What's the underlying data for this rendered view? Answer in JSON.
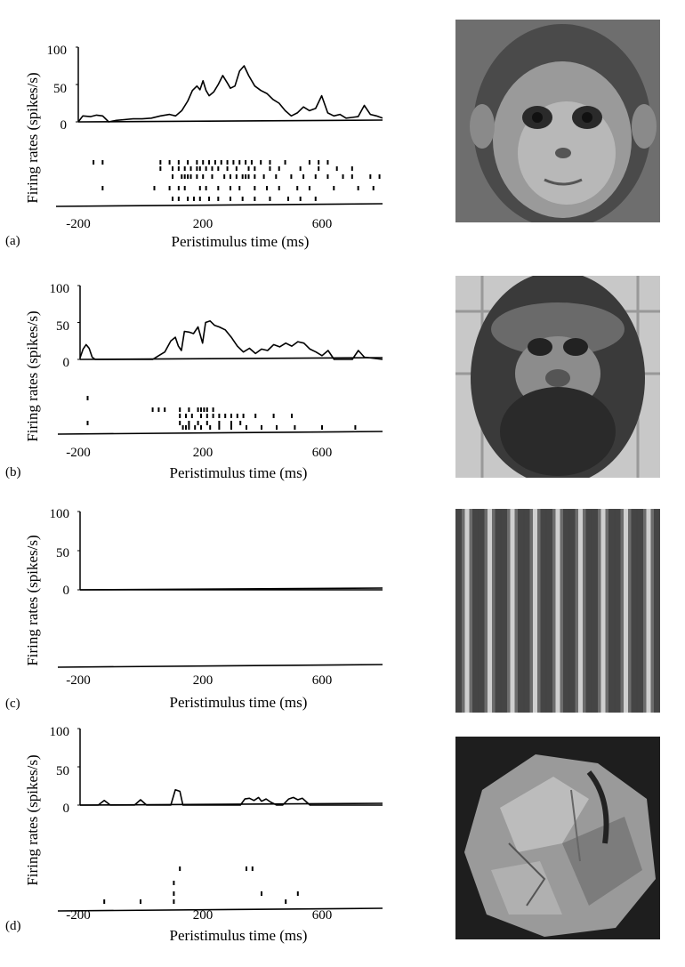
{
  "chart_data": [
    {
      "type": "line",
      "panel": "(a)",
      "ylabel": "Firing rates (spikes/s)",
      "xlabel": "Peristimulus time (ms)",
      "xlim": [
        -200,
        800
      ],
      "ylim": [
        0,
        100
      ],
      "yticks": [
        "100",
        "50",
        "0"
      ],
      "xticks": [
        "-200",
        "200",
        "600"
      ],
      "xtick_values": [
        -200,
        200,
        600
      ],
      "stimulus": "monkey-face-frontal",
      "series": [
        {
          "x": [
            -200,
            -185,
            -160,
            -140,
            -120,
            -100,
            -75,
            -50,
            -20,
            10,
            40,
            70,
            100,
            120,
            140,
            160,
            175,
            190,
            200,
            210,
            220,
            230,
            245,
            260,
            275,
            290,
            300,
            315,
            330,
            345,
            360,
            380,
            400,
            420,
            440,
            460,
            480,
            500,
            520,
            540,
            560,
            580,
            600,
            620,
            640,
            660,
            680,
            700,
            720,
            740,
            760,
            780,
            800
          ],
          "y": [
            0,
            8,
            7,
            9,
            8,
            0,
            2,
            3,
            4,
            4,
            5,
            8,
            10,
            8,
            15,
            28,
            42,
            48,
            43,
            55,
            42,
            35,
            40,
            50,
            62,
            52,
            45,
            48,
            68,
            75,
            62,
            48,
            42,
            38,
            30,
            25,
            15,
            8,
            12,
            20,
            15,
            18,
            35,
            12,
            8,
            10,
            5,
            6,
            7,
            22,
            10,
            8,
            5
          ]
        }
      ],
      "raster": [
        [
          -150,
          -120,
          70,
          100,
          130,
          160,
          190,
          210,
          230,
          250,
          270,
          290,
          310,
          330,
          350,
          370,
          400,
          430,
          480,
          560,
          590,
          620
        ],
        [
          70,
          110,
          130,
          150,
          170,
          190,
          200,
          220,
          240,
          260,
          290,
          320,
          360,
          380,
          430,
          460,
          530,
          590,
          650,
          700
        ],
        [
          110,
          140,
          150,
          160,
          170,
          190,
          210,
          240,
          280,
          300,
          320,
          340,
          350,
          360,
          380,
          410,
          450,
          500,
          540,
          580,
          620,
          670,
          700,
          760,
          790
        ],
        [
          -120,
          50,
          100,
          130,
          150,
          200,
          220,
          260,
          300,
          330,
          380,
          420,
          460,
          520,
          560,
          640,
          720,
          770
        ],
        [
          110,
          130,
          160,
          180,
          200,
          230,
          260,
          300,
          340,
          380,
          430,
          490,
          530,
          580
        ]
      ]
    },
    {
      "type": "line",
      "panel": "(b)",
      "ylabel": "Firing rates (spikes/s)",
      "xlabel": "Peristimulus time (ms)",
      "xlim": [
        -200,
        800
      ],
      "ylim": [
        0,
        100
      ],
      "yticks": [
        "100",
        "50",
        "0"
      ],
      "xticks": [
        "-200",
        "200",
        "600"
      ],
      "xtick_values": [
        -200,
        200,
        600
      ],
      "stimulus": "monkey-face-bearded",
      "series": [
        {
          "x": [
            -200,
            -190,
            -180,
            -170,
            -160,
            -150,
            -100,
            -50,
            0,
            20,
            40,
            60,
            80,
            100,
            115,
            125,
            135,
            145,
            160,
            175,
            190,
            205,
            215,
            230,
            245,
            260,
            280,
            300,
            320,
            340,
            360,
            380,
            400,
            420,
            440,
            460,
            480,
            500,
            520,
            540,
            560,
            580,
            600,
            620,
            640,
            660,
            680,
            700,
            720,
            740,
            800
          ],
          "y": [
            2,
            14,
            20,
            15,
            3,
            0,
            0,
            0,
            0,
            0,
            0,
            5,
            10,
            25,
            30,
            18,
            12,
            38,
            37,
            35,
            44,
            22,
            50,
            52,
            46,
            44,
            40,
            30,
            18,
            10,
            15,
            8,
            14,
            12,
            20,
            17,
            22,
            18,
            24,
            22,
            14,
            10,
            5,
            12,
            0,
            0,
            0,
            0,
            12,
            3,
            0
          ]
        }
      ],
      "raster": [
        [
          -175
        ],
        [
          40,
          60,
          80,
          130,
          160,
          190,
          200,
          210,
          220,
          240
        ],
        [
          130,
          150,
          170,
          200,
          220,
          240,
          260,
          280,
          300,
          320,
          340,
          380,
          440,
          500
        ],
        [
          -175,
          130,
          160,
          190,
          220,
          260,
          300,
          330
        ],
        [
          140,
          150,
          160,
          180,
          200,
          230,
          260,
          300,
          350,
          400,
          450,
          510,
          600,
          710
        ]
      ]
    },
    {
      "type": "line",
      "panel": "(c)",
      "ylabel": "Firing rates (spikes/s)",
      "xlabel": "Peristimulus time (ms)",
      "xlim": [
        -200,
        800
      ],
      "ylim": [
        0,
        100
      ],
      "yticks": [
        "100",
        "50",
        "0"
      ],
      "xticks": [
        "-200",
        "200",
        "600"
      ],
      "xtick_values": [
        -200,
        200,
        600
      ],
      "stimulus": "sine-wave-grating",
      "series": [
        {
          "x": [
            -200,
            800
          ],
          "y": [
            0,
            0
          ]
        }
      ],
      "raster": []
    },
    {
      "type": "line",
      "panel": "(d)",
      "ylabel": "Firing rates (spikes/s)",
      "xlabel": "Peristimulus time (ms)",
      "xlim": [
        -200,
        800
      ],
      "ylim": [
        0,
        100
      ],
      "yticks": [
        "100",
        "50",
        "0"
      ],
      "xticks": [
        "-200",
        "200",
        "600"
      ],
      "xtick_values": [
        -200,
        200,
        600
      ],
      "stimulus": "crumpled-paper-object",
      "series": [
        {
          "x": [
            -200,
            -140,
            -120,
            -100,
            -20,
            0,
            20,
            100,
            115,
            130,
            140,
            330,
            345,
            360,
            375,
            390,
            400,
            415,
            430,
            450,
            470,
            490,
            505,
            520,
            535,
            560,
            800
          ],
          "y": [
            0,
            0,
            6,
            0,
            0,
            7,
            0,
            0,
            20,
            18,
            0,
            0,
            8,
            9,
            6,
            10,
            5,
            8,
            4,
            0,
            0,
            8,
            10,
            7,
            9,
            0,
            0
          ]
        }
      ],
      "raster": [
        [
          130,
          350,
          370
        ],
        [
          110
        ],
        [
          110,
          400,
          520
        ],
        [
          -120,
          0,
          110,
          480
        ]
      ]
    }
  ]
}
